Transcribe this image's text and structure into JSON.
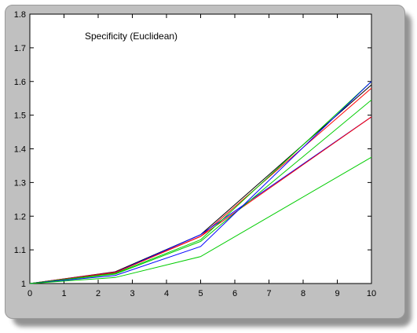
{
  "chart_data": {
    "type": "line",
    "title": "Specificity (Euclidean)",
    "xlabel": "",
    "ylabel": "",
    "xlim": [
      0,
      10
    ],
    "ylim": [
      1,
      1.8
    ],
    "xticks": [
      0,
      1,
      2,
      3,
      4,
      5,
      6,
      7,
      8,
      9,
      10
    ],
    "yticks": [
      1,
      1.1,
      1.2,
      1.3,
      1.4,
      1.5,
      1.6,
      1.7,
      1.8
    ],
    "grid": false,
    "x": [
      0,
      2.5,
      5,
      10
    ],
    "series": [
      {
        "color": "#000000",
        "values": [
          1,
          1.035,
          1.145,
          1.59
        ]
      },
      {
        "color": "#ff0000",
        "values": [
          1,
          1.034,
          1.14,
          1.58
        ]
      },
      {
        "color": "#0000ff",
        "values": [
          1,
          1.033,
          1.145,
          1.495
        ]
      },
      {
        "color": "#ff0000",
        "values": [
          1,
          1.032,
          1.14,
          1.495
        ]
      },
      {
        "color": "#00cc00",
        "values": [
          1,
          1.03,
          1.13,
          1.6
        ]
      },
      {
        "color": "#00cc00",
        "values": [
          1,
          1.028,
          1.125,
          1.545
        ]
      },
      {
        "color": "#0000ff",
        "values": [
          1,
          1.024,
          1.11,
          1.6
        ]
      },
      {
        "color": "#00cc00",
        "values": [
          1,
          1.018,
          1.08,
          1.375
        ]
      }
    ]
  }
}
